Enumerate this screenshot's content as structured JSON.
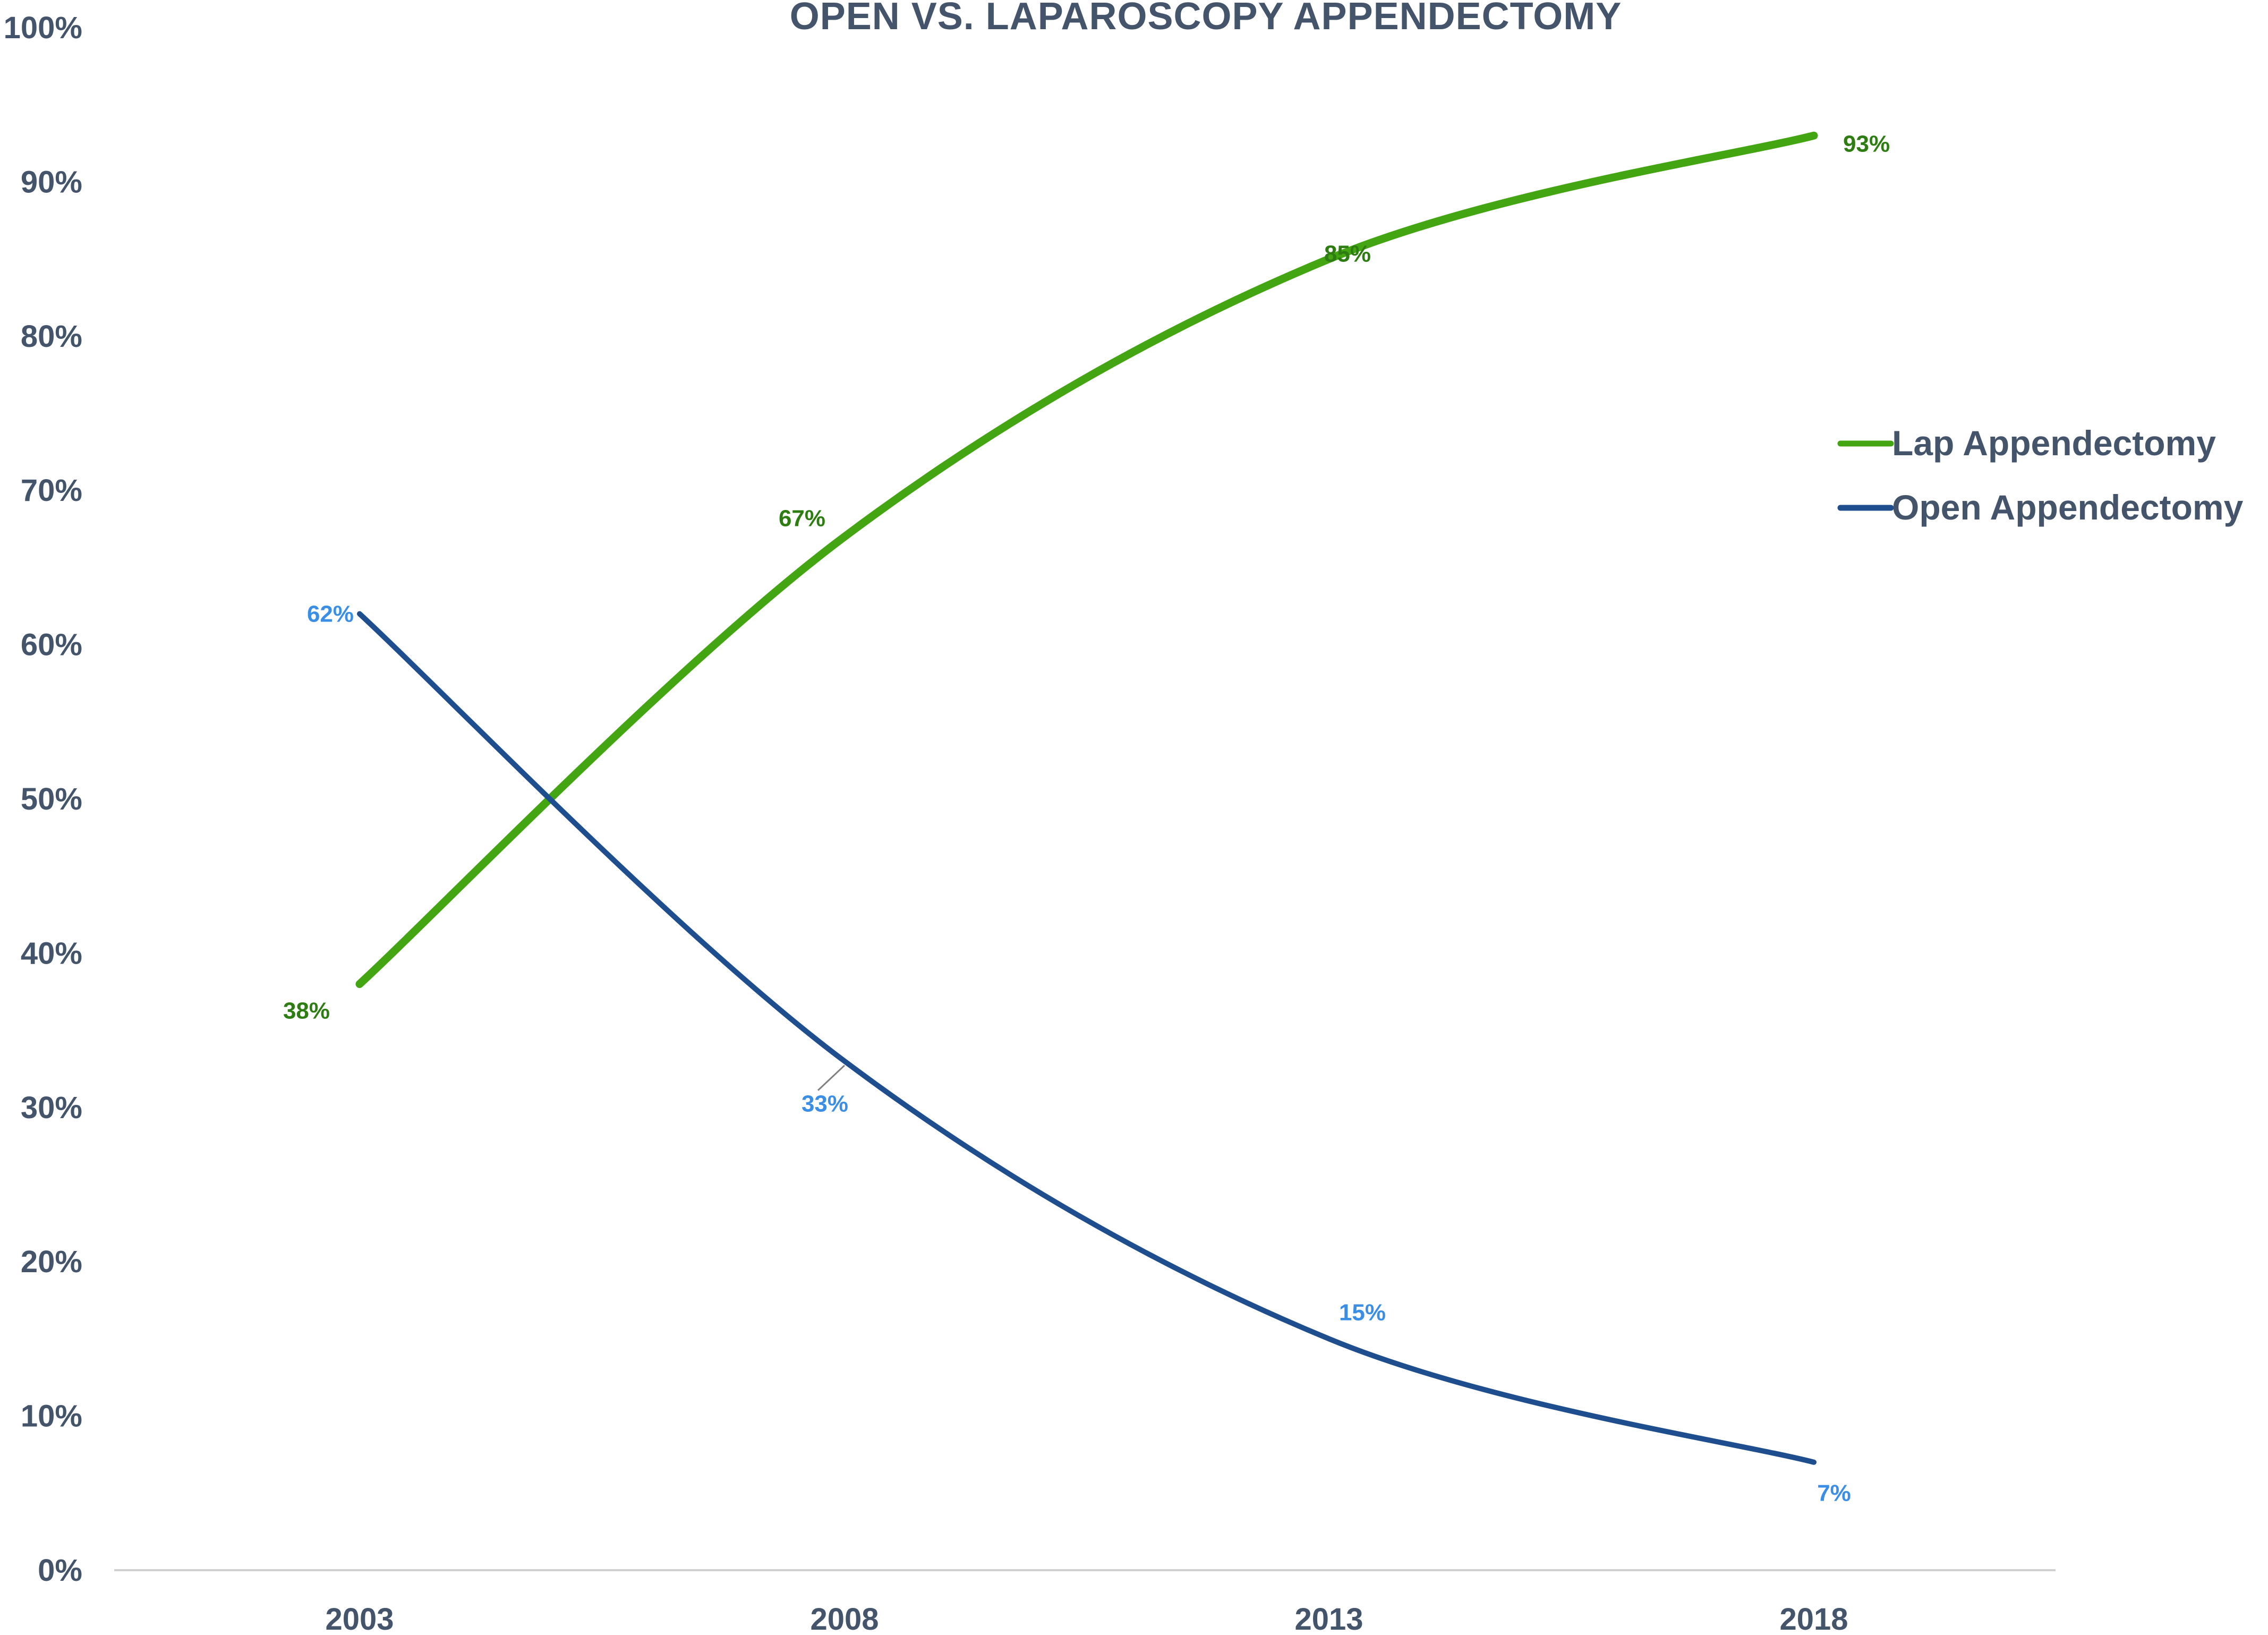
{
  "chart_data": {
    "type": "line",
    "title": "OPEN VS. LAPAROSCOPY APPENDECTOMY",
    "xlabel": "",
    "ylabel": "",
    "categories": [
      "2003",
      "2008",
      "2013",
      "2018"
    ],
    "ylim": [
      0,
      100
    ],
    "y_ticks": [
      "0%",
      "10%",
      "20%",
      "30%",
      "40%",
      "50%",
      "60%",
      "70%",
      "80%",
      "90%",
      "100%"
    ],
    "grid": false,
    "legend_position": "right",
    "smooth": true,
    "series": [
      {
        "name": "Lap Appendectomy",
        "color": "#43a511",
        "label_color": "#2e7d12",
        "values": [
          38,
          67,
          85,
          93
        ],
        "labels": [
          "38%",
          "67%",
          "85%",
          "93%"
        ]
      },
      {
        "name": "Open Appendectomy",
        "color": "#1f4e8f",
        "label_color": "#3a8ee6",
        "values": [
          62,
          33,
          15,
          7
        ],
        "labels": [
          "62%",
          "33%",
          "15%",
          "7%"
        ]
      }
    ]
  }
}
